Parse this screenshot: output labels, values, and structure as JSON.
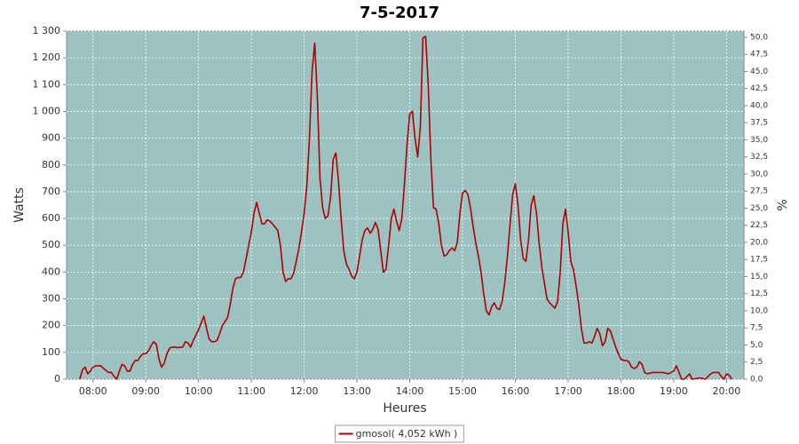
{
  "chart_data": {
    "type": "line",
    "title": "7-5-2017",
    "xlabel": "Heures",
    "ylabel": "Watts",
    "y2label": "%",
    "background": "#9cc2c2",
    "grid": true,
    "legend": "bottom",
    "xlim": [
      7.5,
      20.33
    ],
    "xticks": [
      {
        "value": 8,
        "label": "08:00"
      },
      {
        "value": 9,
        "label": "09:00"
      },
      {
        "value": 10,
        "label": "10:00"
      },
      {
        "value": 11,
        "label": "11:00"
      },
      {
        "value": 12,
        "label": "12:00"
      },
      {
        "value": 13,
        "label": "13:00"
      },
      {
        "value": 14,
        "label": "14:00"
      },
      {
        "value": 15,
        "label": "15:00"
      },
      {
        "value": 16,
        "label": "16:00"
      },
      {
        "value": 17,
        "label": "17:00"
      },
      {
        "value": 18,
        "label": "18:00"
      },
      {
        "value": 19,
        "label": "19:00"
      },
      {
        "value": 20,
        "label": "20:00"
      }
    ],
    "ylim": [
      0,
      1300
    ],
    "yticks": [
      0,
      100,
      200,
      300,
      400,
      500,
      600,
      700,
      800,
      900,
      {
        "value": 1000,
        "label": "1 000"
      },
      {
        "value": 1100,
        "label": "1 100"
      },
      {
        "value": 1200,
        "label": "1 200"
      },
      {
        "value": 1300,
        "label": "1 300"
      }
    ],
    "y2lim": [
      0,
      50.9
    ],
    "y2ticks": [
      {
        "value": 0,
        "label": "0,0"
      },
      {
        "value": 2.5,
        "label": "2,5"
      },
      {
        "value": 5,
        "label": "5,0"
      },
      {
        "value": 7.5,
        "label": "7,5"
      },
      {
        "value": 10,
        "label": "10,0"
      },
      {
        "value": 12.5,
        "label": "12,5"
      },
      {
        "value": 15,
        "label": "15,0"
      },
      {
        "value": 17.5,
        "label": "17,5"
      },
      {
        "value": 20,
        "label": "20,0"
      },
      {
        "value": 22.5,
        "label": "22,5"
      },
      {
        "value": 25,
        "label": "25,0"
      },
      {
        "value": 27.5,
        "label": "27,5"
      },
      {
        "value": 30,
        "label": "30,0"
      },
      {
        "value": 32.5,
        "label": "32,5"
      },
      {
        "value": 35,
        "label": "35,0"
      },
      {
        "value": 37.5,
        "label": "37,5"
      },
      {
        "value": 40,
        "label": "40,0"
      },
      {
        "value": 42.5,
        "label": "42,5"
      },
      {
        "value": 45,
        "label": "45,0"
      },
      {
        "value": 47.5,
        "label": "47,5"
      },
      {
        "value": 50,
        "label": "50,0"
      }
    ],
    "x": [
      7.75,
      7.8,
      7.85,
      7.9,
      7.95,
      8.0,
      8.05,
      8.15,
      8.2,
      8.3,
      8.35,
      8.4,
      8.45,
      8.5,
      8.55,
      8.6,
      8.65,
      8.7,
      8.75,
      8.8,
      8.85,
      8.9,
      8.95,
      9.0,
      9.05,
      9.1,
      9.15,
      9.2,
      9.25,
      9.3,
      9.35,
      9.4,
      9.45,
      9.5,
      9.6,
      9.7,
      9.75,
      9.8,
      9.85,
      9.9,
      9.95,
      10.0,
      10.05,
      10.1,
      10.15,
      10.2,
      10.25,
      10.3,
      10.35,
      10.4,
      10.45,
      10.5,
      10.55,
      10.6,
      10.65,
      10.7,
      10.75,
      10.8,
      10.85,
      10.9,
      10.95,
      11.0,
      11.05,
      11.1,
      11.15,
      11.2,
      11.25,
      11.3,
      11.35,
      11.4,
      11.5,
      11.55,
      11.6,
      11.65,
      11.7,
      11.75,
      11.8,
      11.85,
      11.9,
      11.95,
      12.0,
      12.05,
      12.1,
      12.15,
      12.2,
      12.25,
      12.3,
      12.35,
      12.4,
      12.45,
      12.5,
      12.55,
      12.6,
      12.65,
      12.7,
      12.75,
      12.8,
      12.85,
      12.9,
      12.95,
      13.0,
      13.05,
      13.1,
      13.15,
      13.2,
      13.25,
      13.3,
      13.35,
      13.4,
      13.45,
      13.5,
      13.55,
      13.6,
      13.65,
      13.7,
      13.75,
      13.8,
      13.85,
      13.9,
      13.95,
      14.0,
      14.05,
      14.1,
      14.15,
      14.2,
      14.25,
      14.3,
      14.35,
      14.4,
      14.45,
      14.5,
      14.55,
      14.6,
      14.65,
      14.7,
      14.75,
      14.8,
      14.85,
      14.9,
      14.95,
      15.0,
      15.05,
      15.1,
      15.15,
      15.2,
      15.25,
      15.3,
      15.35,
      15.4,
      15.45,
      15.5,
      15.55,
      15.6,
      15.65,
      15.7,
      15.75,
      15.8,
      15.85,
      15.9,
      15.95,
      16.0,
      16.05,
      16.1,
      16.15,
      16.2,
      16.25,
      16.3,
      16.35,
      16.4,
      16.45,
      16.5,
      16.55,
      16.6,
      16.65,
      16.7,
      16.75,
      16.8,
      16.85,
      16.9,
      16.95,
      17.0,
      17.05,
      17.1,
      17.15,
      17.2,
      17.25,
      17.3,
      17.35,
      17.4,
      17.45,
      17.5,
      17.55,
      17.6,
      17.65,
      17.7,
      17.75,
      17.8,
      17.85,
      17.9,
      17.95,
      18.0,
      18.05,
      18.1,
      18.15,
      18.2,
      18.25,
      18.3,
      18.35,
      18.4,
      18.45,
      18.5,
      18.6,
      18.7,
      18.8,
      18.9,
      19.0,
      19.05,
      19.1,
      19.15,
      19.2,
      19.3,
      19.35,
      19.5,
      19.6,
      19.7,
      19.75,
      19.8,
      19.85,
      19.9,
      19.95,
      20.0,
      20.05,
      20.1
    ],
    "series": [
      {
        "name": "gmosol( 4,052 kWh )",
        "color": "#b00000",
        "values": [
          0,
          35,
          45,
          20,
          30,
          45,
          50,
          50,
          40,
          25,
          25,
          10,
          0,
          30,
          55,
          50,
          30,
          30,
          55,
          70,
          70,
          85,
          95,
          95,
          105,
          125,
          140,
          130,
          75,
          45,
          60,
          95,
          115,
          120,
          118,
          120,
          140,
          135,
          120,
          145,
          165,
          185,
          210,
          235,
          190,
          150,
          140,
          140,
          145,
          170,
          200,
          215,
          230,
          280,
          340,
          375,
          380,
          380,
          400,
          450,
          500,
          550,
          620,
          660,
          620,
          580,
          580,
          595,
          590,
          580,
          555,
          500,
          400,
          365,
          375,
          375,
          395,
          440,
          490,
          550,
          620,
          720,
          900,
          1150,
          1255,
          1050,
          750,
          640,
          600,
          610,
          680,
          820,
          845,
          740,
          600,
          480,
          430,
          410,
          385,
          375,
          400,
          460,
          520,
          555,
          565,
          545,
          560,
          585,
          560,
          480,
          400,
          410,
          500,
          600,
          635,
          590,
          555,
          600,
          730,
          880,
          990,
          1000,
          900,
          830,
          940,
          1275,
          1280,
          1100,
          820,
          640,
          635,
          580,
          500,
          460,
          465,
          480,
          490,
          480,
          510,
          620,
          695,
          705,
          690,
          640,
          570,
          510,
          460,
          400,
          320,
          255,
          240,
          270,
          285,
          265,
          260,
          290,
          360,
          460,
          580,
          690,
          730,
          650,
          520,
          450,
          440,
          520,
          650,
          685,
          620,
          510,
          420,
          360,
          300,
          285,
          275,
          265,
          290,
          400,
          580,
          635,
          550,
          440,
          410,
          350,
          280,
          190,
          135,
          135,
          140,
          135,
          160,
          190,
          170,
          125,
          140,
          190,
          180,
          150,
          120,
          95,
          75,
          70,
          70,
          65,
          45,
          40,
          45,
          65,
          55,
          25,
          20,
          25,
          25,
          25,
          20,
          30,
          50,
          25,
          0,
          0,
          20,
          0,
          5,
          0,
          20,
          25,
          25,
          25,
          10,
          0,
          20,
          15,
          0
        ]
      }
    ]
  }
}
